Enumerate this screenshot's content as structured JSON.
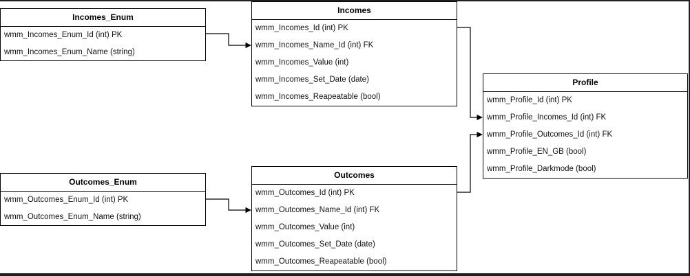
{
  "entities": {
    "incomes_enum": {
      "title": "Incomes_Enum",
      "fields": [
        "wmm_Incomes_Enum_Id (int) PK",
        "wmm_Incomes_Enum_Name (string)"
      ]
    },
    "incomes": {
      "title": "Incomes",
      "fields": [
        "wmm_Incomes_Id (int) PK",
        "wmm_Incomes_Name_Id (int) FK",
        "wmm_Incomes_Value (int)",
        "wmm_Incomes_Set_Date (date)",
        "wmm_Incomes_Reapeatable (bool)"
      ]
    },
    "profile": {
      "title": "Profile",
      "fields": [
        "wmm_Profile_Id (int) PK",
        "wmm_Profile_Incomes_Id (int) FK",
        "wmm_Profile_Outcomes_Id (int) FK",
        "wmm_Profile_EN_GB (bool)",
        "wmm_Profile_Darkmode (bool)"
      ]
    },
    "outcomes_enum": {
      "title": "Outcomes_Enum",
      "fields": [
        "wmm_Outcomes_Enum_Id (int) PK",
        "wmm_Outcomes_Enum_Name (string)"
      ]
    },
    "outcomes": {
      "title": "Outcomes",
      "fields": [
        "wmm_Outcomes_Id (int) PK",
        "wmm_Outcomes_Name_Id (int) FK",
        "wmm_Outcomes_Value (int)",
        "wmm_Outcomes_Set_Date (date)",
        "wmm_Outcomes_Reapeatable (bool)"
      ]
    }
  },
  "connectors": [
    {
      "from": "Incomes_Enum.wmm_Incomes_Enum_Id",
      "to": "Incomes.wmm_Incomes_Name_Id"
    },
    {
      "from": "Outcomes_Enum.wmm_Outcomes_Enum_Id",
      "to": "Outcomes.wmm_Outcomes_Name_Id"
    },
    {
      "from": "Incomes.wmm_Incomes_Id",
      "to": "Profile.wmm_Profile_Incomes_Id"
    },
    {
      "from": "Outcomes.wmm_Outcomes_Id",
      "to": "Profile.wmm_Profile_Outcomes_Id"
    }
  ]
}
